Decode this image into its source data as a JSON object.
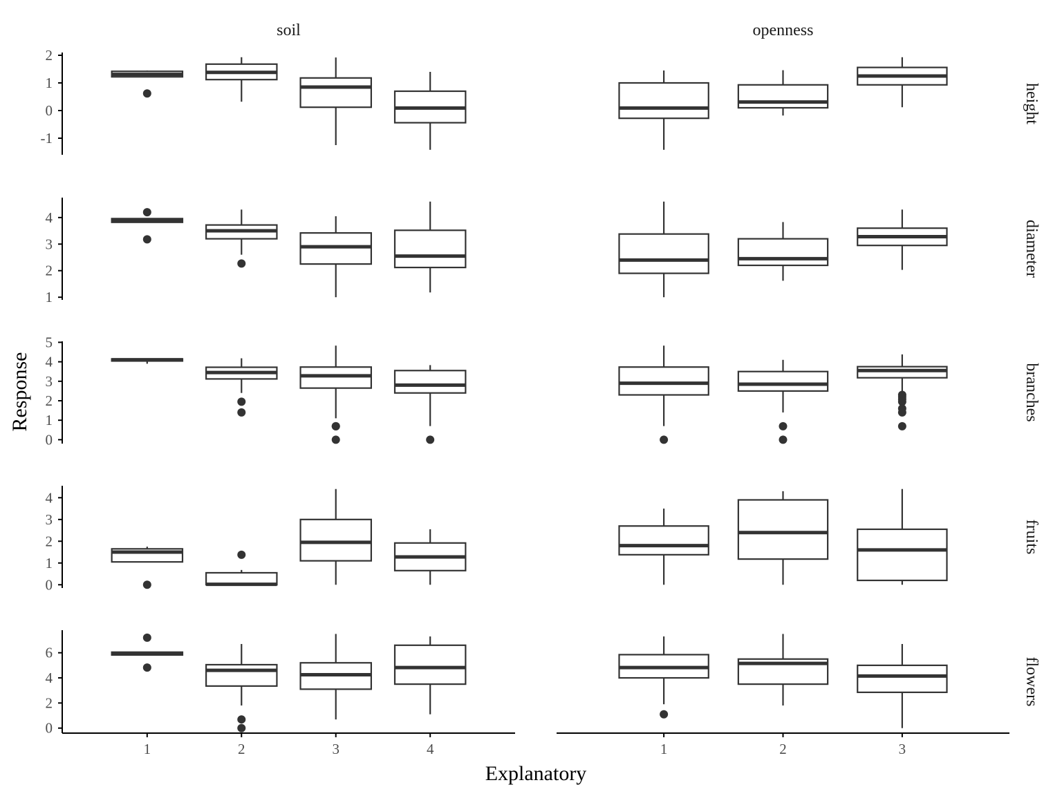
{
  "chart_data": {
    "type": "boxplot",
    "xlabel": "Explanatory",
    "ylabel": "Response",
    "columns": [
      "soil",
      "openness"
    ],
    "column_categories": {
      "soil": [
        "1",
        "2",
        "3",
        "4"
      ],
      "openness": [
        "1",
        "2",
        "3"
      ]
    },
    "rows": [
      {
        "name": "height",
        "ylim": [
          -1.6,
          2.1
        ],
        "ticks": [
          -1,
          0,
          1,
          2
        ],
        "tick_labels": [
          "-1",
          "0",
          "1",
          "2"
        ],
        "boxes": {
          "soil": [
            {
              "category": "1",
              "whisker_low": 1.2,
              "q1": 1.22,
              "median": 1.31,
              "q3": 1.42,
              "whisker_high": 1.45,
              "outliers": [
                0.62
              ]
            },
            {
              "category": "2",
              "whisker_low": 0.32,
              "q1": 1.12,
              "median": 1.38,
              "q3": 1.68,
              "whisker_high": 1.93,
              "outliers": []
            },
            {
              "category": "3",
              "whisker_low": -1.25,
              "q1": 0.12,
              "median": 0.85,
              "q3": 1.18,
              "whisker_high": 1.92,
              "outliers": []
            },
            {
              "category": "4",
              "whisker_low": -1.42,
              "q1": -0.44,
              "median": 0.09,
              "q3": 0.7,
              "whisker_high": 1.4,
              "outliers": []
            }
          ],
          "openness": [
            {
              "category": "1",
              "whisker_low": -1.42,
              "q1": -0.28,
              "median": 0.09,
              "q3": 1.0,
              "whisker_high": 1.45,
              "outliers": []
            },
            {
              "category": "2",
              "whisker_low": -0.18,
              "q1": 0.1,
              "median": 0.31,
              "q3": 0.93,
              "whisker_high": 1.46,
              "outliers": []
            },
            {
              "category": "3",
              "whisker_low": 0.12,
              "q1": 0.93,
              "median": 1.25,
              "q3": 1.56,
              "whisker_high": 1.93,
              "outliers": []
            }
          ]
        }
      },
      {
        "name": "diameter",
        "ylim": [
          0.9,
          4.75
        ],
        "ticks": [
          1,
          2,
          3,
          4
        ],
        "tick_labels": [
          "1",
          "2",
          "3",
          "4"
        ],
        "boxes": {
          "soil": [
            {
              "category": "1",
              "whisker_low": 3.8,
              "q1": 3.82,
              "median": 3.89,
              "q3": 3.96,
              "whisker_high": 3.97,
              "outliers": [
                4.2,
                3.18
              ]
            },
            {
              "category": "2",
              "whisker_low": 2.6,
              "q1": 3.2,
              "median": 3.5,
              "q3": 3.72,
              "whisker_high": 4.3,
              "outliers": [
                2.27
              ]
            },
            {
              "category": "3",
              "whisker_low": 1.0,
              "q1": 2.25,
              "median": 2.9,
              "q3": 3.42,
              "whisker_high": 4.05,
              "outliers": []
            },
            {
              "category": "4",
              "whisker_low": 1.18,
              "q1": 2.12,
              "median": 2.55,
              "q3": 3.52,
              "whisker_high": 4.6,
              "outliers": []
            }
          ],
          "openness": [
            {
              "category": "1",
              "whisker_low": 1.0,
              "q1": 1.9,
              "median": 2.4,
              "q3": 3.38,
              "whisker_high": 4.6,
              "outliers": []
            },
            {
              "category": "2",
              "whisker_low": 1.62,
              "q1": 2.2,
              "median": 2.45,
              "q3": 3.2,
              "whisker_high": 3.83,
              "outliers": []
            },
            {
              "category": "3",
              "whisker_low": 2.03,
              "q1": 2.95,
              "median": 3.28,
              "q3": 3.6,
              "whisker_high": 4.3,
              "outliers": []
            }
          ]
        }
      },
      {
        "name": "branches",
        "ylim": [
          -0.2,
          5.05
        ],
        "ticks": [
          0,
          1,
          2,
          3,
          4,
          5
        ],
        "tick_labels": [
          "0",
          "1",
          "2",
          "3",
          "4",
          "5"
        ],
        "boxes": {
          "soil": [
            {
              "category": "1",
              "whisker_low": 3.9,
              "q1": 4.04,
              "median": 4.1,
              "q3": 4.15,
              "whisker_high": 4.16,
              "outliers": []
            },
            {
              "category": "2",
              "whisker_low": 2.4,
              "q1": 3.12,
              "median": 3.45,
              "q3": 3.72,
              "whisker_high": 4.18,
              "outliers": [
                1.95,
                1.4
              ]
            },
            {
              "category": "3",
              "whisker_low": 1.1,
              "q1": 2.65,
              "median": 3.28,
              "q3": 3.73,
              "whisker_high": 4.83,
              "outliers": [
                0.69,
                0.69,
                0.0
              ]
            },
            {
              "category": "4",
              "whisker_low": 0.7,
              "q1": 2.4,
              "median": 2.8,
              "q3": 3.55,
              "whisker_high": 3.83,
              "outliers": [
                0.0
              ]
            }
          ],
          "openness": [
            {
              "category": "1",
              "whisker_low": 0.7,
              "q1": 2.3,
              "median": 2.9,
              "q3": 3.73,
              "whisker_high": 4.83,
              "outliers": [
                0.0
              ]
            },
            {
              "category": "2",
              "whisker_low": 1.4,
              "q1": 2.5,
              "median": 2.85,
              "q3": 3.5,
              "whisker_high": 4.1,
              "outliers": [
                0.69,
                0.0
              ]
            },
            {
              "category": "3",
              "whisker_low": 2.4,
              "q1": 3.18,
              "median": 3.55,
              "q3": 3.75,
              "whisker_high": 4.38,
              "outliers": [
                2.3,
                2.2,
                2.08,
                1.95,
                1.6,
                1.4,
                0.69
              ]
            }
          ]
        }
      },
      {
        "name": "fruits",
        "ylim": [
          -0.15,
          4.55
        ],
        "ticks": [
          0,
          1,
          2,
          3,
          4
        ],
        "tick_labels": [
          "0",
          "1",
          "2",
          "3",
          "4"
        ],
        "boxes": {
          "soil": [
            {
              "category": "1",
              "whisker_low": 1.05,
              "q1": 1.05,
              "median": 1.5,
              "q3": 1.65,
              "whisker_high": 1.75,
              "outliers": [
                0.0
              ]
            },
            {
              "category": "2",
              "whisker_low": 0.0,
              "q1": 0.0,
              "median": 0.02,
              "q3": 0.55,
              "whisker_high": 0.68,
              "outliers": [
                1.38
              ]
            },
            {
              "category": "3",
              "whisker_low": 0.0,
              "q1": 1.1,
              "median": 1.95,
              "q3": 3.0,
              "whisker_high": 4.4,
              "outliers": []
            },
            {
              "category": "4",
              "whisker_low": 0.0,
              "q1": 0.65,
              "median": 1.28,
              "q3": 1.92,
              "whisker_high": 2.55,
              "outliers": []
            }
          ],
          "openness": [
            {
              "category": "1",
              "whisker_low": 0.0,
              "q1": 1.38,
              "median": 1.8,
              "q3": 2.7,
              "whisker_high": 3.5,
              "outliers": []
            },
            {
              "category": "2",
              "whisker_low": 0.0,
              "q1": 1.18,
              "median": 2.4,
              "q3": 3.9,
              "whisker_high": 4.3,
              "outliers": []
            },
            {
              "category": "3",
              "whisker_low": 0.0,
              "q1": 0.2,
              "median": 1.6,
              "q3": 2.55,
              "whisker_high": 4.4,
              "outliers": []
            }
          ]
        }
      },
      {
        "name": "flowers",
        "ylim": [
          -0.4,
          7.8
        ],
        "ticks": [
          0,
          2,
          4,
          6
        ],
        "tick_labels": [
          "0",
          "2",
          "4",
          "6"
        ],
        "boxes": {
          "soil": [
            {
              "category": "1",
              "whisker_low": 5.8,
              "q1": 5.82,
              "median": 5.93,
              "q3": 6.05,
              "whisker_high": 6.06,
              "outliers": [
                7.2,
                4.82
              ]
            },
            {
              "category": "2",
              "whisker_low": 1.8,
              "q1": 3.35,
              "median": 4.6,
              "q3": 5.05,
              "whisker_high": 6.7,
              "outliers": [
                0.69,
                0.0
              ]
            },
            {
              "category": "3",
              "whisker_low": 0.69,
              "q1": 3.1,
              "median": 4.25,
              "q3": 5.2,
              "whisker_high": 7.5,
              "outliers": []
            },
            {
              "category": "4",
              "whisker_low": 1.1,
              "q1": 3.5,
              "median": 4.82,
              "q3": 6.6,
              "whisker_high": 7.3,
              "outliers": []
            }
          ],
          "openness": [
            {
              "category": "1",
              "whisker_low": 1.9,
              "q1": 4.0,
              "median": 4.82,
              "q3": 5.85,
              "whisker_high": 7.3,
              "outliers": [
                1.1
              ]
            },
            {
              "category": "2",
              "whisker_low": 1.8,
              "q1": 3.5,
              "median": 5.15,
              "q3": 5.5,
              "whisker_high": 7.5,
              "outliers": []
            },
            {
              "category": "3",
              "whisker_low": 0.0,
              "q1": 2.85,
              "median": 4.15,
              "q3": 5.0,
              "whisker_high": 6.7,
              "outliers": []
            }
          ]
        }
      }
    ],
    "grid": false,
    "legend": "none",
    "colors": {
      "box_line": "#333333",
      "box_fill": "#ffffff",
      "axis": "#000000",
      "tick_text": "#4d4d4d"
    }
  }
}
